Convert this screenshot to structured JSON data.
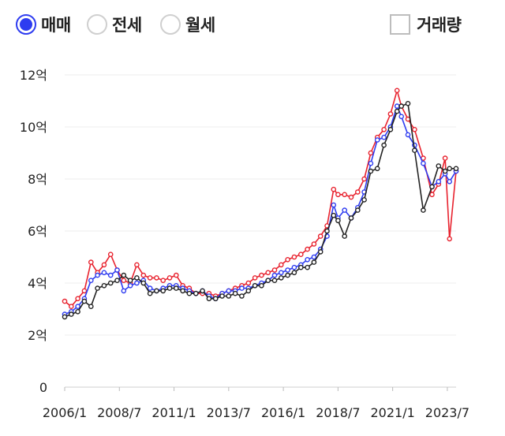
{
  "controls": {
    "radios": [
      {
        "label": "매매",
        "selected": true
      },
      {
        "label": "전세",
        "selected": false
      },
      {
        "label": "월세",
        "selected": false
      }
    ],
    "volume_checkbox": {
      "label": "거래량",
      "checked": false
    }
  },
  "colors": {
    "radio_accent": "#2e3cf0",
    "series_red": "#e8222e",
    "series_blue": "#2e3cf0",
    "series_black": "#222222"
  },
  "chart_data": {
    "type": "line",
    "y_tick_labels": [
      "0",
      "2억",
      "4억",
      "6억",
      "8억",
      "10억",
      "12억"
    ],
    "y_ticks": [
      0,
      2,
      4,
      6,
      8,
      10,
      12
    ],
    "ylim": [
      0,
      12
    ],
    "x_tick_labels": [
      "2006/1",
      "2008/7",
      "2011/1",
      "2013/7",
      "2016/1",
      "2018/7",
      "2021/1",
      "2023/7"
    ],
    "x_ticks": [
      2006.0,
      2008.5,
      2011.0,
      2013.5,
      2016.0,
      2018.5,
      2021.0,
      2023.5
    ],
    "xlim": [
      2006.0,
      2023.9
    ],
    "grid": true,
    "series": [
      {
        "color": "#e8222e",
        "x": [
          2006.0,
          2006.3,
          2006.6,
          2006.9,
          2007.2,
          2007.5,
          2007.8,
          2008.1,
          2008.4,
          2008.7,
          2009.0,
          2009.3,
          2009.6,
          2009.9,
          2010.2,
          2010.5,
          2010.8,
          2011.1,
          2011.4,
          2011.7,
          2012.0,
          2012.3,
          2012.6,
          2012.9,
          2013.2,
          2013.5,
          2013.8,
          2014.1,
          2014.4,
          2014.7,
          2015.0,
          2015.3,
          2015.6,
          2015.9,
          2016.2,
          2016.5,
          2016.8,
          2017.1,
          2017.4,
          2017.7,
          2018.0,
          2018.3,
          2018.5,
          2018.8,
          2019.1,
          2019.4,
          2019.7,
          2020.0,
          2020.3,
          2020.6,
          2020.9,
          2021.2,
          2021.4,
          2021.7,
          2022.0,
          2022.4,
          2022.8,
          2023.1,
          2023.4,
          2023.6,
          2023.9
        ],
        "values": [
          3.3,
          3.1,
          3.4,
          3.7,
          4.8,
          4.4,
          4.7,
          5.1,
          4.5,
          4.1,
          4.0,
          4.7,
          4.3,
          4.2,
          4.2,
          4.1,
          4.2,
          4.3,
          3.9,
          3.8,
          3.6,
          3.6,
          3.6,
          3.5,
          3.6,
          3.7,
          3.8,
          3.9,
          4.0,
          4.2,
          4.3,
          4.4,
          4.5,
          4.7,
          4.9,
          5.0,
          5.1,
          5.3,
          5.5,
          5.8,
          6.2,
          7.6,
          7.4,
          7.4,
          7.3,
          7.5,
          8.0,
          9.0,
          9.6,
          9.9,
          10.5,
          11.4,
          10.8,
          10.3,
          9.9,
          8.8,
          7.4,
          7.8,
          8.8,
          5.7,
          8.3
        ]
      },
      {
        "color": "#2e3cf0",
        "x": [
          2006.0,
          2006.3,
          2006.6,
          2006.9,
          2007.2,
          2007.5,
          2007.8,
          2008.1,
          2008.4,
          2008.7,
          2009.0,
          2009.3,
          2009.6,
          2009.9,
          2010.2,
          2010.5,
          2010.8,
          2011.1,
          2011.4,
          2011.7,
          2012.0,
          2012.3,
          2012.6,
          2012.9,
          2013.2,
          2013.5,
          2013.8,
          2014.1,
          2014.4,
          2014.7,
          2015.0,
          2015.3,
          2015.6,
          2015.9,
          2016.2,
          2016.5,
          2016.8,
          2017.1,
          2017.4,
          2017.7,
          2018.0,
          2018.3,
          2018.5,
          2018.8,
          2019.1,
          2019.4,
          2019.7,
          2020.0,
          2020.3,
          2020.6,
          2020.9,
          2021.2,
          2021.4,
          2021.7,
          2022.0,
          2022.4,
          2022.8,
          2023.1,
          2023.4,
          2023.6,
          2023.9
        ],
        "values": [
          2.8,
          2.9,
          3.1,
          3.4,
          4.1,
          4.3,
          4.4,
          4.3,
          4.5,
          3.7,
          3.9,
          4.0,
          4.1,
          3.8,
          3.7,
          3.8,
          3.9,
          3.9,
          3.8,
          3.7,
          3.6,
          3.7,
          3.5,
          3.4,
          3.6,
          3.7,
          3.7,
          3.8,
          3.8,
          3.9,
          4.0,
          4.1,
          4.3,
          4.4,
          4.5,
          4.6,
          4.7,
          4.9,
          5.0,
          5.3,
          5.8,
          7.0,
          6.5,
          6.8,
          6.5,
          6.9,
          7.5,
          8.6,
          9.5,
          9.6,
          10.0,
          10.8,
          10.4,
          9.7,
          9.3,
          8.6,
          7.7,
          7.9,
          8.2,
          7.9,
          8.3
        ]
      },
      {
        "color": "#222222",
        "x": [
          2006.0,
          2006.3,
          2006.6,
          2006.9,
          2007.2,
          2007.5,
          2007.8,
          2008.1,
          2008.4,
          2008.7,
          2009.0,
          2009.3,
          2009.6,
          2009.9,
          2010.2,
          2010.5,
          2010.8,
          2011.1,
          2011.4,
          2011.7,
          2012.0,
          2012.3,
          2012.6,
          2012.9,
          2013.2,
          2013.5,
          2013.8,
          2014.1,
          2014.4,
          2014.7,
          2015.0,
          2015.3,
          2015.6,
          2015.9,
          2016.2,
          2016.5,
          2016.8,
          2017.1,
          2017.4,
          2017.7,
          2018.0,
          2018.3,
          2018.5,
          2018.8,
          2019.1,
          2019.4,
          2019.7,
          2020.0,
          2020.3,
          2020.6,
          2020.9,
          2021.2,
          2021.4,
          2021.7,
          2022.0,
          2022.4,
          2022.8,
          2023.1,
          2023.4,
          2023.6,
          2023.9
        ],
        "values": [
          2.7,
          2.8,
          2.9,
          3.3,
          3.1,
          3.8,
          3.9,
          4.0,
          4.1,
          4.3,
          4.1,
          4.2,
          4.0,
          3.6,
          3.7,
          3.7,
          3.8,
          3.8,
          3.7,
          3.6,
          3.6,
          3.7,
          3.4,
          3.4,
          3.5,
          3.5,
          3.6,
          3.5,
          3.7,
          3.9,
          3.9,
          4.1,
          4.1,
          4.2,
          4.3,
          4.4,
          4.6,
          4.6,
          4.8,
          5.2,
          6.0,
          6.6,
          6.4,
          5.8,
          6.5,
          6.8,
          7.2,
          8.3,
          8.4,
          9.3,
          9.9,
          10.6,
          10.8,
          10.9,
          9.1,
          6.8,
          7.7,
          8.5,
          8.3,
          8.4,
          8.4
        ]
      }
    ]
  }
}
